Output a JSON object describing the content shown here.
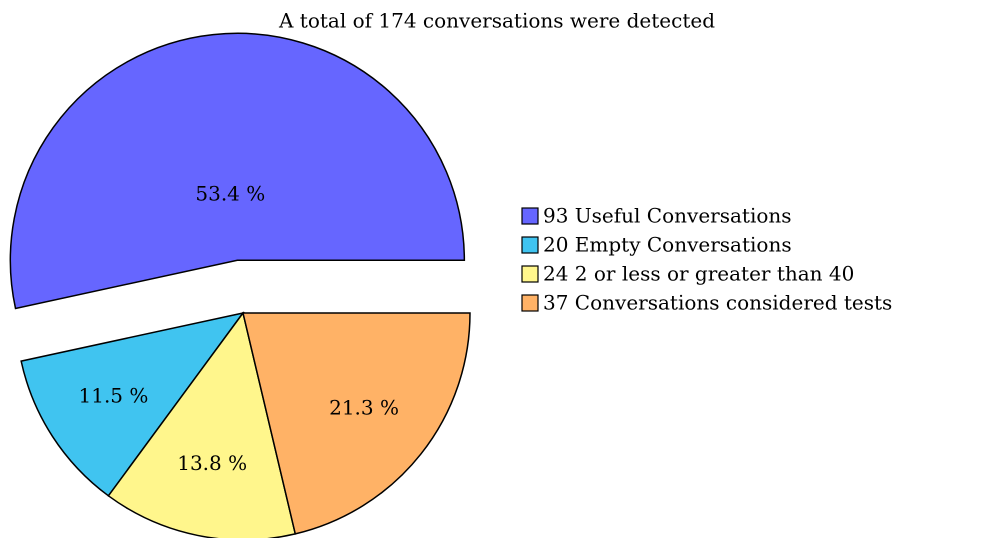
{
  "chart_data": {
    "type": "pie",
    "title": "A total of 174 conversations were detected",
    "categories": [
      "93 Useful Conversations",
      "20 Empty Conversations",
      "24 2 or less or greater than 40",
      "37 Conversations considered tests"
    ],
    "values": [
      53.4,
      11.5,
      13.8,
      21.3
    ],
    "value_labels": [
      "53.4 %",
      "11.5 %",
      "13.8 %",
      "21.3 %"
    ],
    "colors": [
      "#6666ff",
      "#40c4f0",
      "#fff68c",
      "#ffb266"
    ],
    "explode": [
      true,
      false,
      false,
      false
    ],
    "legend": "right"
  }
}
